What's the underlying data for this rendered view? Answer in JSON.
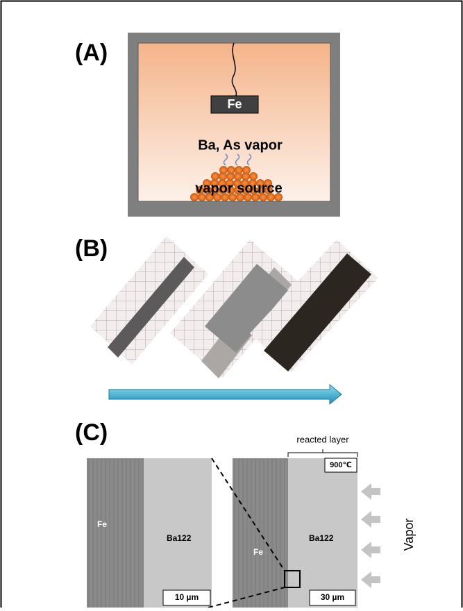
{
  "panel_a": {
    "label": "(A)",
    "metal": "Fe",
    "vapor": "Ba, As vapor",
    "source": "vapor source"
  },
  "panel_b": {
    "label": "(B)"
  },
  "panel_c": {
    "label": "(C)",
    "bracket": "reacted layer",
    "temperature": "900℃",
    "left_image": {
      "fe": "Fe",
      "compound": "Ba122",
      "scale": "10 µm"
    },
    "right_image": {
      "fe": "Fe",
      "compound": "Ba122",
      "scale": "30 µm"
    },
    "arrow_label": "Vapor"
  }
}
